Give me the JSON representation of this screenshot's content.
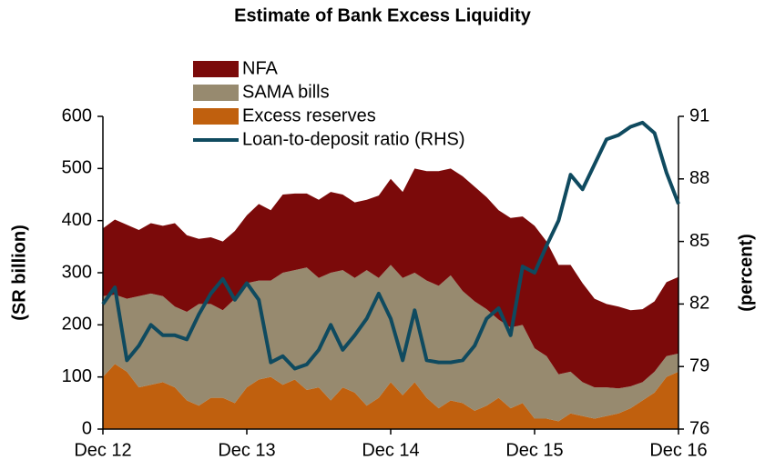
{
  "chart_data": {
    "type": "area",
    "title": "Estimate of Bank Excess Liquidity",
    "y_label": "(SR billion)",
    "y2_label": "(percent)",
    "categories": [
      "Dec 12",
      null,
      null,
      null,
      null,
      null,
      null,
      null,
      null,
      null,
      null,
      null,
      "Dec 13",
      null,
      null,
      null,
      null,
      null,
      null,
      null,
      null,
      null,
      null,
      null,
      "Dec 14",
      null,
      null,
      null,
      null,
      null,
      null,
      null,
      null,
      null,
      null,
      null,
      "Dec 15",
      null,
      null,
      null,
      null,
      null,
      null,
      null,
      null,
      null,
      null,
      null,
      "Dec 16"
    ],
    "ylim": [
      0,
      600
    ],
    "yticks": [
      0,
      100,
      200,
      300,
      400,
      500,
      600
    ],
    "y2lim": [
      76,
      91
    ],
    "y2ticks": [
      76,
      79,
      82,
      85,
      88,
      91
    ],
    "stacked": true,
    "series": [
      {
        "name": "NFA",
        "color": "#7b0a0a",
        "values": [
          130,
          144,
          142,
          127,
          135,
          135,
          160,
          147,
          125,
          128,
          132,
          130,
          130,
          147,
          135,
          150,
          147,
          142,
          150,
          155,
          145,
          145,
          135,
          158,
          165,
          165,
          200,
          210,
          220,
          205,
          220,
          220,
          215,
          210,
          210,
          208,
          235,
          220,
          210,
          205,
          190,
          170,
          160,
          157,
          146,
          140,
          135,
          142,
          147
        ]
      },
      {
        "name": "SAMA bills",
        "color": "#978a6f",
        "values": [
          155,
          133,
          140,
          175,
          175,
          165,
          155,
          170,
          195,
          180,
          168,
          200,
          200,
          190,
          185,
          215,
          210,
          235,
          210,
          245,
          225,
          220,
          260,
          230,
          225,
          225,
          210,
          225,
          235,
          240,
          215,
          210,
          185,
          150,
          155,
          150,
          135,
          120,
          90,
          80,
          65,
          60,
          55,
          48,
          42,
          35,
          40,
          40,
          35
        ]
      },
      {
        "name": "Excess reserves",
        "color": "#c0600e",
        "values": [
          100,
          125,
          110,
          80,
          85,
          90,
          80,
          55,
          45,
          60,
          60,
          50,
          80,
          95,
          100,
          85,
          95,
          75,
          80,
          55,
          80,
          70,
          45,
          60,
          90,
          65,
          90,
          60,
          40,
          55,
          50,
          35,
          45,
          60,
          40,
          50,
          20,
          20,
          15,
          30,
          25,
          20,
          25,
          30,
          40,
          55,
          70,
          100,
          110
        ]
      },
      {
        "name": "Loan-to-deposit ratio (RHS)",
        "color": "#0f4a5f",
        "type": "line",
        "axis": "y2",
        "values": [
          82.0,
          82.8,
          79.3,
          80.0,
          81.0,
          80.5,
          80.5,
          80.3,
          81.5,
          82.5,
          83.2,
          82.2,
          83.0,
          82.2,
          79.2,
          79.5,
          78.9,
          79.1,
          79.8,
          81.0,
          79.8,
          80.5,
          81.3,
          82.5,
          81.3,
          79.3,
          81.7,
          79.3,
          79.2,
          79.2,
          79.3,
          80.0,
          81.3,
          81.8,
          80.5,
          83.8,
          83.5,
          84.8,
          86.0,
          88.2,
          87.5,
          88.7,
          89.9,
          90.1,
          90.5,
          90.7,
          90.2,
          88.3,
          86.8
        ]
      }
    ]
  }
}
